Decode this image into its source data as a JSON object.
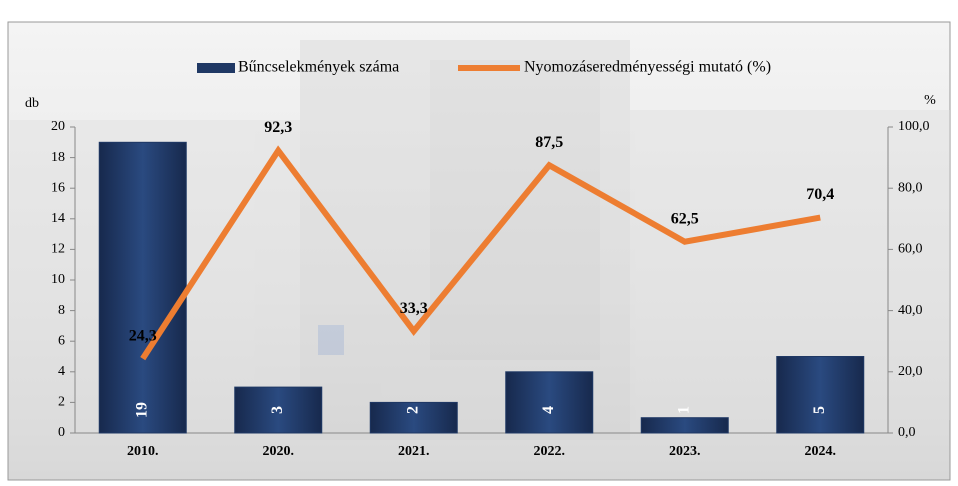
{
  "chart_data": {
    "type": "bar_line",
    "categories": [
      "2010.",
      "2020.",
      "2021.",
      "2022.",
      "2023.",
      "2024."
    ],
    "series": [
      {
        "name": "Bűncselekmények száma",
        "color": "#1f3864",
        "type": "bar",
        "axis": "y",
        "values": [
          19,
          3,
          2,
          4,
          1,
          5
        ]
      },
      {
        "name": "Nyomozáseredményességi mutató (%)",
        "color": "#ed7d31",
        "type": "line",
        "axis": "y2",
        "values": [
          24.3,
          92.3,
          33.3,
          87.5,
          62.5,
          70.4
        ],
        "value_labels": [
          "24,3",
          "92,3",
          "33,3",
          "87,5",
          "62,5",
          "70,4"
        ]
      }
    ],
    "y_label": "db",
    "y2_label": "%",
    "ylim": [
      0,
      20
    ],
    "yticks": [
      0,
      2,
      4,
      6,
      8,
      10,
      12,
      14,
      16,
      18,
      20
    ],
    "y2lim": [
      0,
      100
    ],
    "y2ticks": [
      {
        "value": 0,
        "label": "0,0"
      },
      {
        "value": 20,
        "label": "20,0"
      },
      {
        "value": 40,
        "label": "40,0"
      },
      {
        "value": 60,
        "label": "60,0"
      },
      {
        "value": 80,
        "label": "80,0"
      },
      {
        "value": 100,
        "label": "100,0"
      }
    ],
    "legend": "top"
  }
}
